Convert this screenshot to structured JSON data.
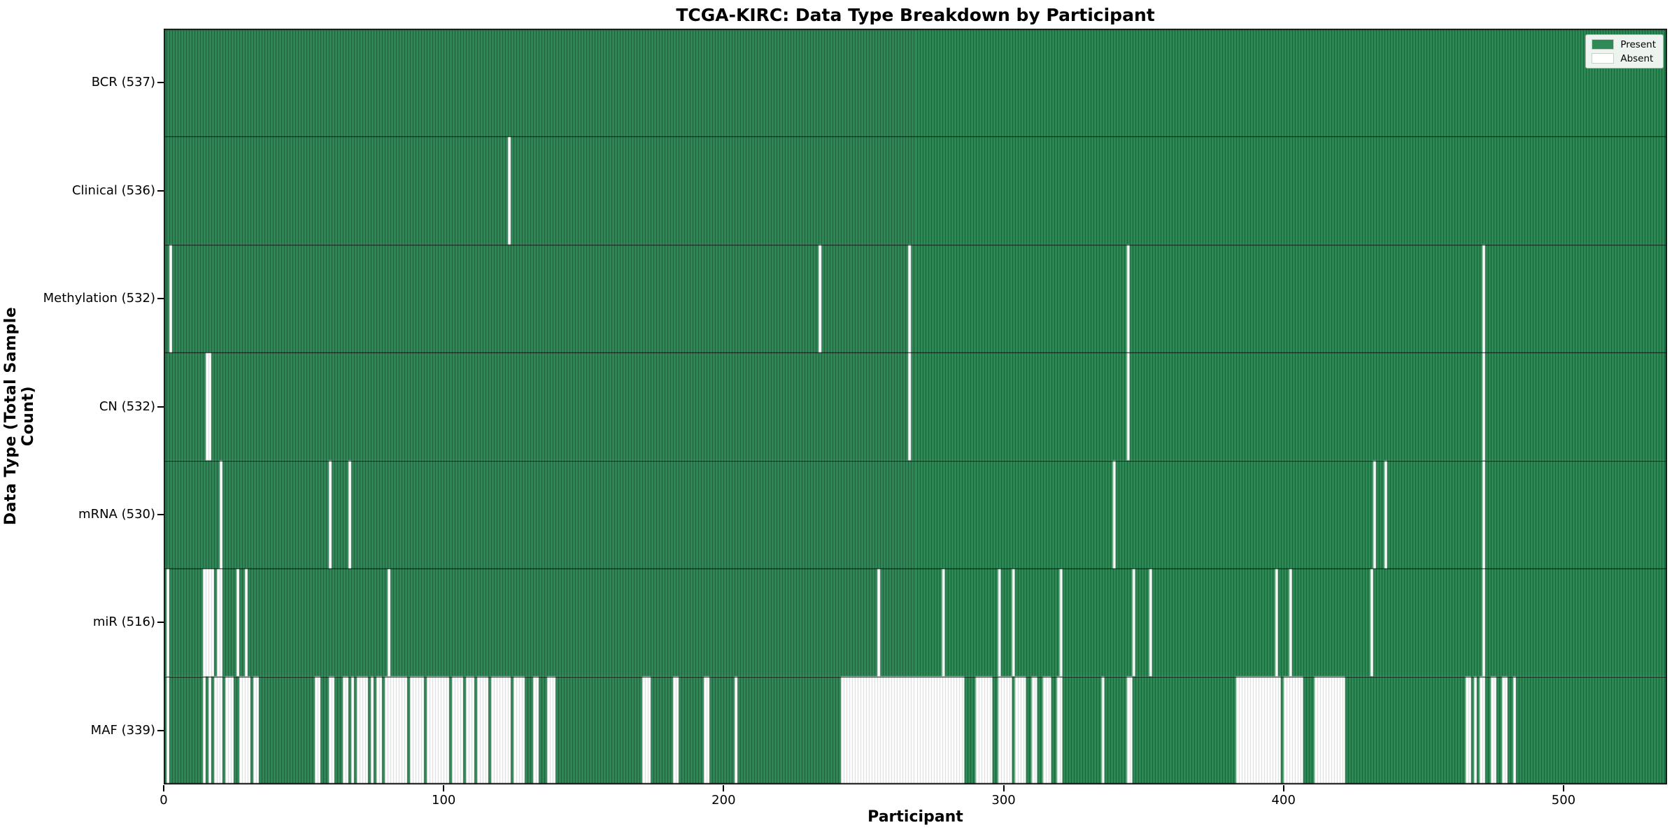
{
  "chart_data": {
    "type": "heatmap",
    "title": "TCGA-KIRC: Data Type Breakdown by Participant",
    "xlabel": "Participant",
    "ylabel": "Data Type (Total Sample Count)",
    "x_ticks": [
      0,
      100,
      200,
      300,
      400,
      500
    ],
    "xlim": [
      0,
      537
    ],
    "n_participants": 537,
    "grid": "off",
    "legend_position": "upper right",
    "legend": [
      {
        "label": "Present",
        "color": "#2e8b57"
      },
      {
        "label": "Absent",
        "color": "#ffffff"
      }
    ],
    "colors": {
      "present": "#2e8b57",
      "absent": "#ffffff",
      "present_cell_edge": "rgba(0,0,0,0.38)",
      "absent_cell_edge": "#d6d6d6",
      "row_separator": "rgba(0,0,0,0.85)",
      "plot_border": "#1a1a1a"
    },
    "rows": [
      {
        "label": "BCR (537)",
        "data_type": "BCR",
        "present_count": 537,
        "absent_ranges": []
      },
      {
        "label": "Clinical (536)",
        "data_type": "Clinical",
        "present_count": 536,
        "absent_ranges": [
          [
            123,
            123
          ]
        ]
      },
      {
        "label": "Methylation (532)",
        "data_type": "Methylation",
        "present_count": 532,
        "absent_ranges": [
          [
            2,
            2
          ],
          [
            234,
            234
          ],
          [
            266,
            266
          ],
          [
            344,
            344
          ],
          [
            471,
            471
          ]
        ]
      },
      {
        "label": "CN (532)",
        "data_type": "CN",
        "present_count": 532,
        "absent_ranges": [
          [
            15,
            16
          ],
          [
            266,
            266
          ],
          [
            344,
            344
          ],
          [
            471,
            471
          ]
        ]
      },
      {
        "label": "mRNA (530)",
        "data_type": "mRNA",
        "present_count": 530,
        "absent_ranges": [
          [
            20,
            20
          ],
          [
            59,
            59
          ],
          [
            66,
            66
          ],
          [
            339,
            339
          ],
          [
            432,
            432
          ],
          [
            436,
            436
          ],
          [
            471,
            471
          ]
        ]
      },
      {
        "label": "miR (516)",
        "data_type": "miR",
        "present_count": 516,
        "absent_ranges": [
          [
            1,
            1
          ],
          [
            14,
            17
          ],
          [
            19,
            20
          ],
          [
            26,
            26
          ],
          [
            29,
            29
          ],
          [
            80,
            80
          ],
          [
            255,
            255
          ],
          [
            278,
            278
          ],
          [
            298,
            298
          ],
          [
            303,
            303
          ],
          [
            320,
            320
          ],
          [
            346,
            346
          ],
          [
            352,
            352
          ],
          [
            397,
            397
          ],
          [
            402,
            402
          ],
          [
            431,
            431
          ],
          [
            471,
            471
          ]
        ]
      },
      {
        "label": "MAF (339)",
        "data_type": "MAF",
        "present_count": 339,
        "absent_ranges": [
          [
            1,
            1
          ],
          [
            14,
            14
          ],
          [
            16,
            16
          ],
          [
            18,
            20
          ],
          [
            22,
            24
          ],
          [
            27,
            30
          ],
          [
            32,
            33
          ],
          [
            54,
            55
          ],
          [
            59,
            60
          ],
          [
            64,
            65
          ],
          [
            67,
            67
          ],
          [
            69,
            72
          ],
          [
            74,
            74
          ],
          [
            76,
            77
          ],
          [
            79,
            86
          ],
          [
            88,
            92
          ],
          [
            94,
            101
          ],
          [
            103,
            106
          ],
          [
            108,
            110
          ],
          [
            112,
            115
          ],
          [
            117,
            123
          ],
          [
            125,
            128
          ],
          [
            132,
            133
          ],
          [
            137,
            139
          ],
          [
            171,
            173
          ],
          [
            182,
            183
          ],
          [
            193,
            194
          ],
          [
            204,
            204
          ],
          [
            242,
            285
          ],
          [
            290,
            295
          ],
          [
            298,
            302
          ],
          [
            304,
            307
          ],
          [
            310,
            311
          ],
          [
            314,
            316
          ],
          [
            319,
            320
          ],
          [
            335,
            335
          ],
          [
            344,
            345
          ],
          [
            383,
            398
          ],
          [
            400,
            406
          ],
          [
            411,
            421
          ],
          [
            465,
            466
          ],
          [
            468,
            468
          ],
          [
            470,
            471
          ],
          [
            474,
            475
          ],
          [
            478,
            479
          ],
          [
            482,
            482
          ]
        ]
      }
    ]
  }
}
